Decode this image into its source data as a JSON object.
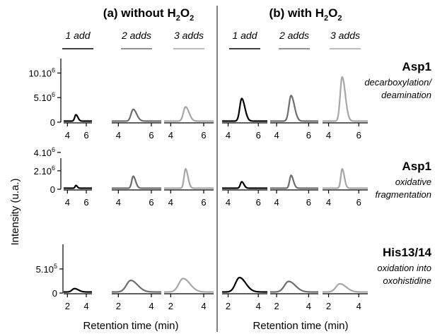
{
  "chart_data": {
    "type": "line",
    "panels": [
      {
        "title": "(a) without H",
        "title_sub": "2",
        "title_tail": "O",
        "title_sub2": "2"
      },
      {
        "title": "(b) with H",
        "title_sub": "2",
        "title_tail": "O",
        "title_sub2": "2"
      }
    ],
    "additions": [
      "1 add",
      "2 adds",
      "3 adds"
    ],
    "series_colors": [
      "#000000",
      "#6d6d6d",
      "#a6a6a6"
    ],
    "ylabel": "Intensity (u.a.)",
    "xlabel": "Retention time (min)",
    "rows": [
      {
        "title": "Asp1",
        "subtitle_lines": [
          "decarboxylation/",
          "deamination"
        ],
        "xlim": [
          3.6,
          6.6
        ],
        "xticks": [
          4,
          6
        ],
        "ylim": [
          0,
          11500000
        ],
        "yticks": [
          {
            "value": 0,
            "label": "0"
          },
          {
            "value": 5000000,
            "label": "5.10",
            "exp": "6"
          },
          {
            "value": 10000000,
            "label": "10.10",
            "exp": "6"
          }
        ],
        "peak_center": 4.9,
        "peak_width": 0.13,
        "peaks": [
          [
            1300000,
            2400000,
            2900000
          ],
          [
            4600000,
            5200000,
            9000000
          ]
        ]
      },
      {
        "title": "Asp1",
        "subtitle_lines": [
          "oxidative",
          "fragmentation"
        ],
        "xlim": [
          3.6,
          6.6
        ],
        "xticks": [
          4,
          6
        ],
        "ylim": [
          0,
          4600000
        ],
        "yticks": [
          {
            "value": 0,
            "label": "0"
          },
          {
            "value": 2000000,
            "label": "2.10",
            "exp": "6"
          },
          {
            "value": 4000000,
            "label": "4.10",
            "exp": "6"
          }
        ],
        "peak_center": 4.9,
        "peak_width": 0.09,
        "peaks": [
          [
            300000,
            1300000,
            2100000
          ],
          [
            700000,
            1400000,
            2100000
          ]
        ]
      },
      {
        "title": "His13/14",
        "subtitle_lines": [
          "oxidation into",
          "oxohistidine"
        ],
        "xlim": [
          1.6,
          4.6
        ],
        "xticks": [
          2,
          4
        ],
        "ylim": [
          0,
          880000
        ],
        "yticks": [
          {
            "value": 0,
            "label": "0"
          },
          {
            "value": 500000,
            "label": "5.10",
            "exp": "5"
          }
        ],
        "peak_center": 2.75,
        "peak_width": 0.26,
        "peaks": [
          [
            70000,
            240000,
            280000
          ],
          [
            300000,
            220000,
            170000
          ]
        ]
      }
    ]
  }
}
